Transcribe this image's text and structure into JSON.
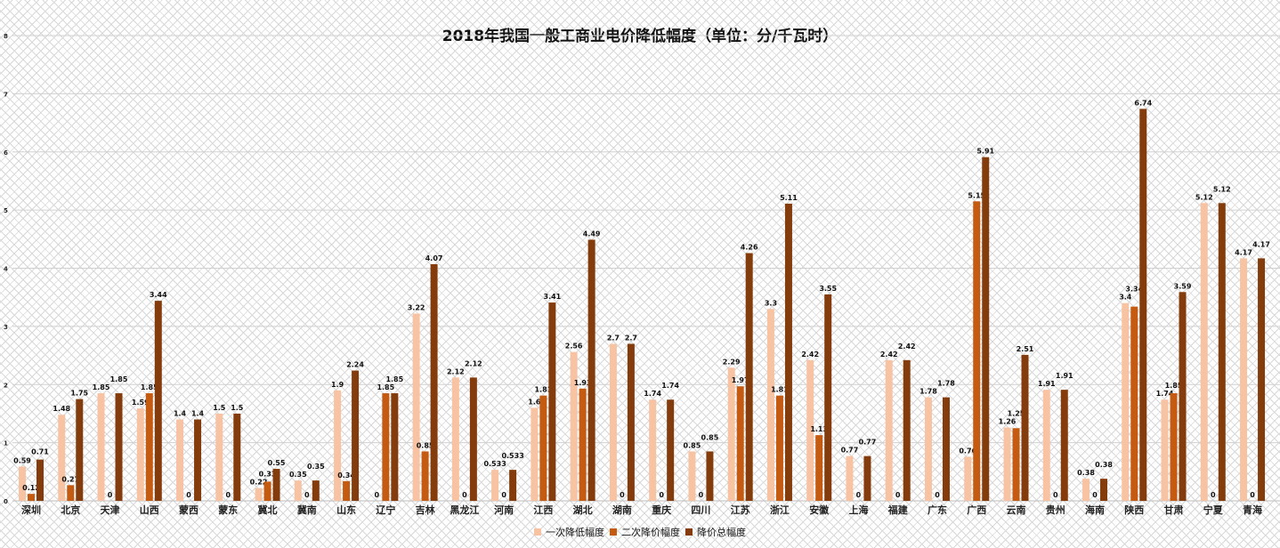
{
  "chart_data": {
    "type": "bar",
    "title": "2018年我国一般工商业电价降低幅度（单位：分/千瓦时）",
    "xlabel": "",
    "ylabel": "",
    "ylim": [
      0,
      8
    ],
    "yticks": [
      0,
      1,
      2,
      3,
      4,
      5,
      6,
      7,
      8
    ],
    "grid": true,
    "legend_position": "bottom",
    "categories": [
      "深圳",
      "北京",
      "天津",
      "山西",
      "蒙西",
      "蒙东",
      "冀北",
      "冀南",
      "山东",
      "辽宁",
      "吉林",
      "黑龙江",
      "河南",
      "江西",
      "湖北",
      "湖南",
      "重庆",
      "四川",
      "江苏",
      "浙江",
      "安徽",
      "上海",
      "福建",
      "广东",
      "广西",
      "云南",
      "贵州",
      "海南",
      "陕西",
      "甘肃",
      "宁夏",
      "青海"
    ],
    "series": [
      {
        "name": "一次降低幅度",
        "color": "#F8C3A3",
        "values": [
          0.59,
          1.48,
          1.85,
          1.59,
          1.4,
          1.5,
          0.22,
          0.35,
          1.9,
          0,
          3.22,
          2.12,
          0.533,
          1.6,
          2.56,
          2.7,
          1.74,
          0.85,
          2.29,
          3.3,
          2.42,
          0.77,
          2.42,
          1.78,
          0.76,
          1.26,
          1.91,
          0.38,
          3.4,
          1.74,
          5.12,
          4.17
        ]
      },
      {
        "name": "二次降价幅度",
        "color": "#C55A11",
        "values": [
          0.12,
          0.27,
          0,
          1.85,
          0,
          0,
          0.33,
          0,
          0.34,
          1.85,
          0.85,
          0,
          0,
          1.81,
          1.93,
          0,
          0,
          0,
          1.97,
          1.81,
          1.13,
          0,
          0,
          0,
          5.15,
          1.25,
          0,
          0,
          3.34,
          1.85,
          0,
          0
        ]
      },
      {
        "name": "降价总幅度",
        "color": "#843C0C",
        "values": [
          0.71,
          1.75,
          1.85,
          3.44,
          1.4,
          1.5,
          0.55,
          0.35,
          2.24,
          1.85,
          4.07,
          2.12,
          0.533,
          3.41,
          4.49,
          2.7,
          1.74,
          0.85,
          4.26,
          5.11,
          3.55,
          0.77,
          2.42,
          1.78,
          5.91,
          2.51,
          1.91,
          0.38,
          6.74,
          3.59,
          5.12,
          4.17
        ]
      }
    ]
  }
}
